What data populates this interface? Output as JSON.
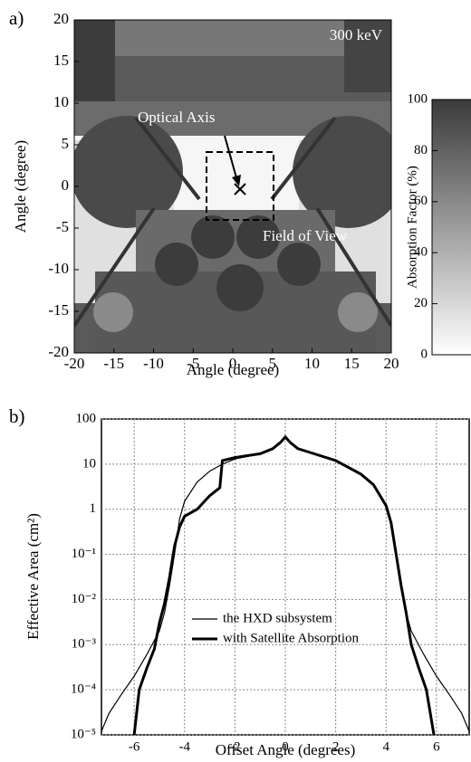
{
  "chart_data": [
    {
      "type": "image",
      "panel_label": "a)",
      "energy_label": "300 keV",
      "annotations": [
        "Optical Axis",
        "Field of View"
      ],
      "x_label": "Angle (degree)",
      "y_label": "Angle (degree)",
      "xlim": [
        -20,
        20
      ],
      "ylim": [
        -20,
        20
      ],
      "xticks": [
        -20,
        -15,
        -10,
        -5,
        0,
        5,
        10,
        15,
        20
      ],
      "yticks": [
        -20,
        -15,
        -10,
        -5,
        0,
        5,
        10,
        15,
        20
      ],
      "colorbar_label": "Absorption Factor (%)",
      "colorbar_lim": [
        0,
        100
      ],
      "colorbar_ticks": [
        0,
        20,
        40,
        60,
        80,
        100
      ],
      "colormap": [
        "#ffffff",
        "#3a3a3a"
      ]
    },
    {
      "type": "line",
      "panel_label": "b)",
      "x_label": "Offset Angle (degrees)",
      "y_label": "Effective Area (cm²)",
      "xlim": [
        -7.3,
        7.3
      ],
      "ylim": [
        1e-05,
        100
      ],
      "log_y": true,
      "grid": true,
      "legend": "lower center",
      "xticks": [
        -6,
        -4,
        -2,
        0,
        2,
        4,
        6
      ],
      "yticks": [
        {
          "value": 1e-05,
          "label": "10⁻⁵"
        },
        {
          "value": 0.0001,
          "label": "10⁻⁴"
        },
        {
          "value": 0.001,
          "label": "10⁻³"
        },
        {
          "value": 0.01,
          "label": "10⁻²"
        },
        {
          "value": 0.1,
          "label": "10⁻¹"
        },
        1,
        10,
        100
      ],
      "series": [
        {
          "name": "the HXD subsystem",
          "color": "#000000",
          "width": 1.2,
          "x": [
            -7.3,
            -7,
            -6.5,
            -6,
            -5.5,
            -5,
            -4.8,
            -4.6,
            -4.4,
            -4.2,
            -4,
            -3.5,
            -3,
            -2.5,
            -2,
            -1,
            -0.5,
            -0.2,
            0,
            0.2,
            0.5,
            1,
            2,
            3,
            3.5,
            4,
            4.2,
            4.4,
            4.6,
            4.8,
            5,
            5.5,
            6,
            6.5,
            7,
            7.3
          ],
          "values": [
            1.2e-05,
            3e-05,
            8e-05,
            0.0002,
            0.0006,
            0.002,
            0.005,
            0.02,
            0.1,
            0.6,
            1.5,
            4,
            7,
            10,
            13,
            17,
            22,
            30,
            40,
            30,
            22,
            18,
            12,
            6,
            3.5,
            1.2,
            0.5,
            0.1,
            0.02,
            0.005,
            0.002,
            0.0006,
            0.0002,
            8e-05,
            3e-05,
            1.2e-05
          ]
        },
        {
          "name": "with Satellite Absorption",
          "color": "#000000",
          "width": 3,
          "x": [
            -6,
            -5.8,
            -5.5,
            -5.2,
            -5,
            -4.8,
            -4.6,
            -4.4,
            -4.2,
            -4,
            -3.5,
            -3,
            -2.6,
            -2.5,
            -2,
            -1,
            -0.5,
            -0.2,
            0,
            0.2,
            0.5,
            1,
            2,
            3,
            3.5,
            4,
            4.2,
            4.4,
            4.6,
            4.8,
            5,
            5.3,
            5.6,
            5.9
          ],
          "values": [
            1e-05,
            0.0001,
            0.0003,
            0.0008,
            0.003,
            0.008,
            0.03,
            0.15,
            0.4,
            0.7,
            1,
            2,
            3,
            12,
            14,
            17,
            22,
            30,
            40,
            30,
            22,
            18,
            12,
            6,
            3.5,
            1.2,
            0.5,
            0.1,
            0.02,
            0.005,
            0.001,
            0.0003,
            0.0001,
            1e-05
          ]
        }
      ]
    }
  ]
}
